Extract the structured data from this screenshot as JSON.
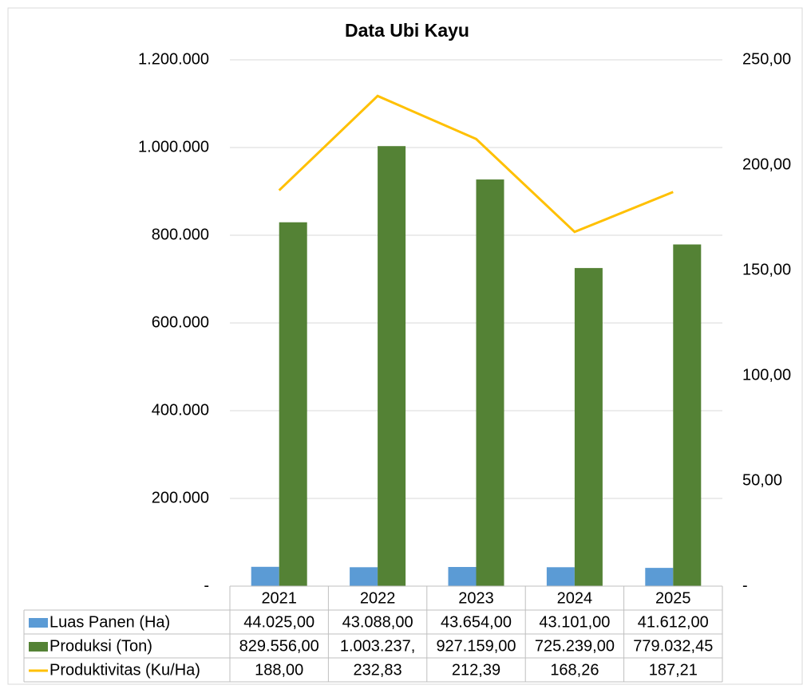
{
  "chart_data": {
    "type": "bar",
    "title": "Data Ubi Kayu",
    "categories": [
      "2021",
      "2022",
      "2023",
      "2024",
      "2025"
    ],
    "series": [
      {
        "name": "Luas Panen (Ha)",
        "color": "#5b9bd5",
        "values": [
          44025,
          43088,
          43654,
          43101,
          41612
        ],
        "value_labels": [
          "44.025,00",
          "43.088,00",
          "43.654,00",
          "43.101,00",
          "41.612,00"
        ]
      },
      {
        "name": "Produksi (Ton)",
        "color": "#548235",
        "values": [
          829556,
          1003237,
          927159,
          725239,
          779032.45
        ],
        "value_labels": [
          "829.556,00",
          "1.003.237,",
          "927.159,00",
          "725.239,00",
          "779.032,45"
        ]
      },
      {
        "name": "Produktivitas (Ku/Ha)",
        "color": "#ffc000",
        "type": "line",
        "axis": "y2",
        "values": [
          188,
          232.83,
          212.39,
          168.26,
          187.21
        ],
        "value_labels": [
          "188,00",
          "232,83",
          "212,39",
          "168,26",
          "187,21"
        ]
      }
    ],
    "ylim": [
      0,
      1200000
    ],
    "yticks": [
      {
        "value": 0,
        "label": "-"
      },
      {
        "value": 200000,
        "label": "200.000"
      },
      {
        "value": 400000,
        "label": "400.000"
      },
      {
        "value": 600000,
        "label": "600.000"
      },
      {
        "value": 800000,
        "label": "800.000"
      },
      {
        "value": 1000000,
        "label": "1.000.000"
      },
      {
        "value": 1200000,
        "label": "1.200.000"
      }
    ],
    "y2lim": [
      0,
      250
    ],
    "y2ticks": [
      {
        "value": 0,
        "label": "-"
      },
      {
        "value": 50,
        "label": "50,00"
      },
      {
        "value": 100,
        "label": "100,00"
      },
      {
        "value": 150,
        "label": "150,00"
      },
      {
        "value": 200,
        "label": "200,00"
      },
      {
        "value": 250,
        "label": "250,00"
      }
    ],
    "grid": true
  }
}
